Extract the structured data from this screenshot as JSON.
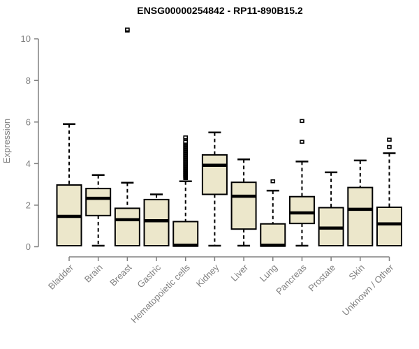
{
  "chart_data": {
    "type": "boxplot",
    "title": "ENSG00000254842 - RP11-890B15.2",
    "ylabel": "Expression",
    "xlabel": "",
    "ylim": [
      0,
      10
    ],
    "yticks": [
      0,
      2,
      4,
      6,
      8,
      10
    ],
    "grid": false,
    "legend": "none",
    "colors": {
      "box_fill": "#ece7cb",
      "box_stroke": "#000000",
      "median": "#000000",
      "whisker": "#000000",
      "outlier_stroke": "#000000",
      "axis": "#808080",
      "tick_text": "#808080",
      "title_text": "#000000"
    },
    "categories": [
      "Bladder",
      "Brain",
      "Breast",
      "Gastric",
      "Hematopoietic cells",
      "Kidney",
      "Liver",
      "Lung",
      "Pancreas",
      "Prostate",
      "Skin",
      "Unknown / Other"
    ],
    "series": [
      {
        "category": "Bladder",
        "whisker_low": 0.05,
        "q1": 0.05,
        "median": 1.46,
        "q3": 2.97,
        "whisker_high": 5.9,
        "outliers": []
      },
      {
        "category": "Brain",
        "whisker_low": 0.05,
        "q1": 1.5,
        "median": 2.33,
        "q3": 2.8,
        "whisker_high": 3.45,
        "outliers": []
      },
      {
        "category": "Breast",
        "whisker_low": 0.05,
        "q1": 0.05,
        "median": 1.3,
        "q3": 1.85,
        "whisker_high": 3.08,
        "outliers": [
          10.4,
          10.45
        ]
      },
      {
        "category": "Gastric",
        "whisker_low": 0.05,
        "q1": 0.05,
        "median": 1.25,
        "q3": 2.27,
        "whisker_high": 2.52,
        "outliers": []
      },
      {
        "category": "Hematopoietic cells",
        "whisker_low": 0.03,
        "q1": 0.03,
        "median": 0.07,
        "q3": 1.21,
        "whisker_high": 3.15,
        "outliers": [
          3.3,
          3.35,
          3.4,
          3.45,
          3.5,
          3.55,
          3.6,
          3.65,
          3.7,
          3.75,
          3.8,
          3.85,
          3.9,
          3.95,
          4.0,
          4.05,
          4.1,
          4.15,
          4.2,
          4.25,
          4.3,
          4.35,
          4.4,
          4.45,
          4.5,
          4.55,
          4.6,
          4.65,
          4.7,
          4.75,
          4.8,
          4.85,
          4.9,
          4.95,
          5.0,
          5.05,
          5.2,
          5.26
        ]
      },
      {
        "category": "Kidney",
        "whisker_low": 0.05,
        "q1": 2.52,
        "median": 3.92,
        "q3": 4.42,
        "whisker_high": 5.5,
        "outliers": []
      },
      {
        "category": "Liver",
        "whisker_low": 0.05,
        "q1": 0.85,
        "median": 2.43,
        "q3": 3.1,
        "whisker_high": 4.2,
        "outliers": []
      },
      {
        "category": "Lung",
        "whisker_low": 0.03,
        "q1": 0.03,
        "median": 0.07,
        "q3": 1.1,
        "whisker_high": 2.7,
        "outliers": [
          3.15
        ]
      },
      {
        "category": "Pancreas",
        "whisker_low": 0.05,
        "q1": 1.12,
        "median": 1.63,
        "q3": 2.41,
        "whisker_high": 4.1,
        "outliers": [
          5.05,
          6.05
        ]
      },
      {
        "category": "Prostate",
        "whisker_low": 0.05,
        "q1": 0.05,
        "median": 0.9,
        "q3": 1.88,
        "whisker_high": 3.58,
        "outliers": []
      },
      {
        "category": "Skin",
        "whisker_low": 0.05,
        "q1": 0.05,
        "median": 1.8,
        "q3": 2.85,
        "whisker_high": 4.15,
        "outliers": []
      },
      {
        "category": "Unknown / Other",
        "whisker_low": 0.05,
        "q1": 0.05,
        "median": 1.1,
        "q3": 1.9,
        "whisker_high": 4.5,
        "outliers": [
          4.8,
          5.15
        ]
      }
    ]
  }
}
